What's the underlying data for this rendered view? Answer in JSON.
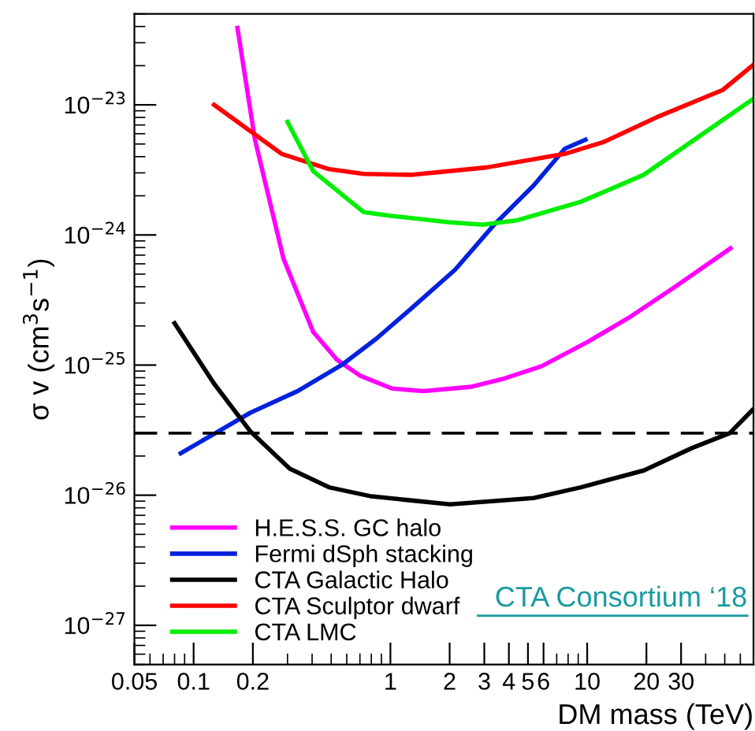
{
  "chart_data": {
    "type": "line",
    "xlabel": "DM mass (TeV)",
    "ylabel": "σ v (cm$^{3}$s$^{−1}$)",
    "log": "xy",
    "grid": false,
    "legend": "bottom left",
    "marker": "none",
    "line_style": "solid",
    "xlim": [
      0.05,
      70
    ],
    "ylim": [
      5e-28,
      5e-23
    ],
    "xticks": [
      0.05,
      0.1,
      0.2,
      1,
      2,
      3,
      4,
      5,
      6,
      10,
      20,
      30
    ],
    "yticks": [
      {
        "value": 1e-27,
        "label": "10$^{−27}$"
      },
      {
        "value": 1e-26,
        "label": "10$^{−26}$"
      },
      {
        "value": 1e-25,
        "label": "10$^{−25}$"
      },
      {
        "value": 1e-24,
        "label": "10$^{−24}$"
      },
      {
        "value": 1e-23,
        "label": "10$^{−23}$"
      }
    ],
    "ref_lines": [
      {
        "axis": "y",
        "value": 3e-26,
        "label": null,
        "color": "#000000",
        "line_style": "dashed"
      }
    ],
    "annotations": [
      "CTA Consortium ‘18"
    ],
    "series": [
      {
        "name": "H.E.S.S. GC halo",
        "color": "#ff00ff",
        "x": [
          0.167,
          0.205,
          0.286,
          0.405,
          0.535,
          0.7,
          1.02,
          1.47,
          2.56,
          3.7,
          5.87,
          10,
          16.2,
          28,
          53.5
        ],
        "values": [
          3.9e-23,
          5.4e-24,
          6.6e-25,
          1.8e-25,
          1.1e-25,
          8.3e-26,
          6.6e-26,
          6.3e-26,
          6.8e-26,
          7.8e-26,
          9.8e-26,
          1.5e-25,
          2.3e-25,
          4e-25,
          7.9e-25
        ]
      },
      {
        "name": "Fermi dSph stacking",
        "color": "#0022dd",
        "x": [
          0.086,
          0.129,
          0.194,
          0.337,
          0.565,
          0.85,
          1.27,
          2.13,
          3.37,
          5.34,
          7.7,
          9.8
        ],
        "values": [
          2.1e-26,
          3e-26,
          4.3e-26,
          6.3e-26,
          1e-25,
          1.6e-25,
          2.7e-25,
          5.4e-25,
          1.2e-24,
          2.4e-24,
          4.6e-24,
          5.4e-24
        ]
      },
      {
        "name": "CTA Galactic Halo",
        "color": "#000000",
        "x": [
          0.08,
          0.127,
          0.194,
          0.308,
          0.487,
          0.8,
          2.01,
          5.34,
          9.3,
          19.4,
          34,
          53,
          69
        ],
        "values": [
          2.1e-25,
          7.2e-26,
          3.1e-26,
          1.6e-26,
          1.15e-26,
          9.8e-27,
          8.5e-27,
          9.5e-27,
          1.15e-26,
          1.55e-26,
          2.3e-26,
          3e-26,
          4.5e-26
        ]
      },
      {
        "name": "CTA Sculptor dwarf",
        "color": "#ff0000",
        "x": [
          0.127,
          0.28,
          0.49,
          0.73,
          1.27,
          3.07,
          7.7,
          12.2,
          23.3,
          48.8,
          69
        ],
        "values": [
          1e-23,
          4.2e-24,
          3.2e-24,
          2.95e-24,
          2.9e-24,
          3.3e-24,
          4.2e-24,
          5.2e-24,
          8.2e-24,
          1.3e-23,
          2e-23
        ]
      },
      {
        "name": "CTA LMC",
        "color": "#00ee00",
        "x": [
          0.3,
          0.405,
          0.73,
          1.02,
          2.0,
          2.96,
          4.45,
          9.3,
          19.4,
          69
        ],
        "values": [
          7.4e-24,
          3.1e-24,
          1.5e-24,
          1.4e-24,
          1.25e-24,
          1.2e-24,
          1.3e-24,
          1.8e-24,
          2.9e-24,
          1.1e-23
        ]
      }
    ]
  }
}
